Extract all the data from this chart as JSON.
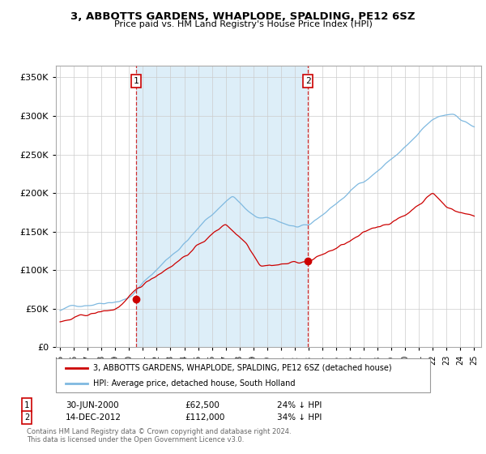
{
  "title": "3, ABBOTTS GARDENS, WHAPLODE, SPALDING, PE12 6SZ",
  "subtitle": "Price paid vs. HM Land Registry's House Price Index (HPI)",
  "hpi_color": "#7fb9e0",
  "hpi_fill_color": "#ddeef8",
  "price_color": "#cc0000",
  "marker1_year": 2000.5,
  "marker1_value": 62500,
  "marker2_year": 2012.95,
  "marker2_value": 112000,
  "legend_line1": "3, ABBOTTS GARDENS, WHAPLODE, SPALDING, PE12 6SZ (detached house)",
  "legend_line2": "HPI: Average price, detached house, South Holland",
  "footer": "Contains HM Land Registry data © Crown copyright and database right 2024.\nThis data is licensed under the Open Government Licence v3.0.",
  "background_color": "#ffffff",
  "yticks": [
    0,
    50000,
    100000,
    150000,
    200000,
    250000,
    300000,
    350000
  ],
  "ylim": [
    0,
    365000
  ],
  "xlim_start": 1994.7,
  "xlim_end": 2025.5
}
